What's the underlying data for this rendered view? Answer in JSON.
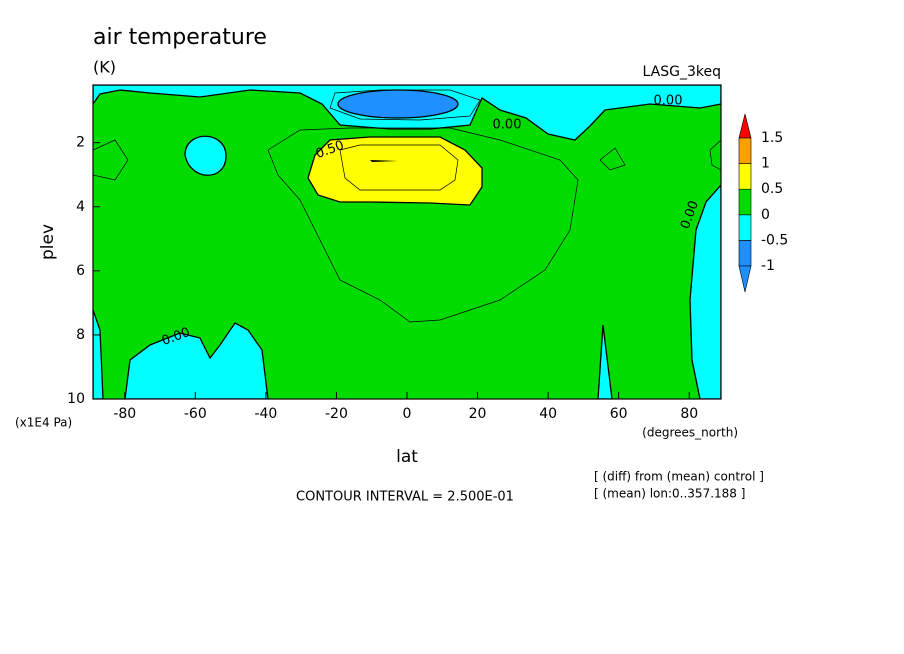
{
  "chart_data": {
    "type": "contour",
    "title": "air temperature",
    "subtitle": "(K)",
    "run_label": "LASG_3keq",
    "x_label": "lat",
    "x_unit": "(degrees_north)",
    "y_label": "plev",
    "y_unit": "(x1E4 Pa)",
    "xlim": [
      -89,
      89
    ],
    "xticks": [
      -80,
      -60,
      -40,
      -20,
      0,
      20,
      40,
      60,
      80
    ],
    "ylim": [
      10,
      0.2
    ],
    "yticks": [
      2,
      4,
      6,
      8,
      10
    ],
    "levels": [
      -1,
      -0.5,
      0,
      0.5,
      1,
      1.5
    ],
    "colors": [
      "#1e90ff",
      "#1e90ff",
      "#00ffff",
      "#00dc00",
      "#ffff00",
      "#ffa000",
      "#ff0000"
    ],
    "contour_labels": [
      "0.00",
      "0.00",
      "0.50",
      "0.00",
      "0.00"
    ],
    "annotations": [
      "CONTOUR INTERVAL = 2.500E-01",
      "[ (diff) from (mean) control ]",
      "[ (mean) lon:0..357.188 ]"
    ]
  }
}
